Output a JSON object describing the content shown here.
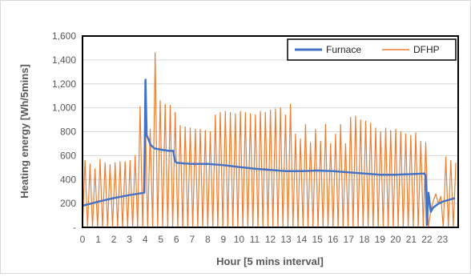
{
  "chart_data": {
    "type": "line",
    "title": "",
    "xlabel": "Hour [5 mins interval]",
    "ylabel": "Heating energy [Wh/5mins]",
    "xlim": [
      0,
      24
    ],
    "ylim": [
      0,
      1600
    ],
    "x_ticks": [
      0,
      1,
      2,
      3,
      4,
      5,
      6,
      7,
      8,
      9,
      10,
      11,
      12,
      13,
      14,
      15,
      16,
      17,
      18,
      19,
      20,
      21,
      22,
      23
    ],
    "y_ticks": [
      {
        "value": 0,
        "label": "-"
      },
      {
        "value": 200,
        "label": "200"
      },
      {
        "value": 400,
        "label": "400"
      },
      {
        "value": 600,
        "label": "600"
      },
      {
        "value": 800,
        "label": "800"
      },
      {
        "value": 1000,
        "label": "1,000"
      },
      {
        "value": 1200,
        "label": "1,200"
      },
      {
        "value": 1400,
        "label": "1,400"
      },
      {
        "value": 1600,
        "label": "1,600"
      }
    ],
    "grid": true,
    "legend_position": "top-right",
    "series": [
      {
        "name": "Furnace",
        "color": "#4472c4",
        "x": [
          0,
          1,
          2,
          3,
          3.95,
          4.02,
          4.1,
          4.2,
          4.35,
          4.6,
          5,
          5.5,
          5.8,
          5.9,
          6,
          6.5,
          7,
          8,
          9,
          10,
          11,
          12,
          13,
          14,
          15,
          16,
          17,
          18,
          19,
          20,
          21,
          21.85,
          21.92,
          22.0,
          22.1,
          22.25,
          22.4,
          22.7,
          23,
          23.8
        ],
        "values": [
          180,
          215,
          245,
          270,
          290,
          1235,
          770,
          740,
          690,
          660,
          650,
          640,
          640,
          560,
          540,
          535,
          530,
          530,
          520,
          505,
          490,
          480,
          470,
          470,
          475,
          470,
          460,
          450,
          440,
          440,
          445,
          450,
          430,
          20,
          290,
          130,
          165,
          195,
          215,
          245
        ]
      },
      {
        "name": "DFHP",
        "color": "#ed7d31",
        "values": [
          0,
          560,
          0,
          530,
          0,
          490,
          0,
          570,
          0,
          540,
          0,
          525,
          0,
          540,
          0,
          550,
          0,
          550,
          0,
          560,
          0,
          600,
          0,
          1010,
          0,
          1010,
          0,
          820,
          0,
          1460,
          0,
          1060,
          0,
          1030,
          0,
          1020,
          0,
          960,
          0,
          850,
          0,
          840,
          0,
          830,
          0,
          820,
          0,
          820,
          0,
          810,
          0,
          800,
          0,
          940,
          0,
          960,
          0,
          970,
          0,
          960,
          0,
          950,
          0,
          970,
          0,
          960,
          0,
          950,
          0,
          940,
          0,
          970,
          0,
          960,
          0,
          980,
          0,
          990,
          0,
          1000,
          0,
          940,
          0,
          1030,
          0,
          780,
          0,
          740,
          0,
          860,
          0,
          710,
          0,
          820,
          0,
          720,
          0,
          860,
          0,
          700,
          0,
          780,
          0,
          860,
          0,
          700,
          0,
          920,
          0,
          930,
          0,
          900,
          0,
          890,
          0,
          870,
          0,
          830,
          0,
          800,
          0,
          830,
          0,
          810,
          0,
          820,
          0,
          800,
          0,
          780,
          0,
          770,
          0,
          790,
          0,
          720,
          0,
          710,
          0,
          140,
          220,
          280,
          200,
          260,
          0,
          590,
          0,
          560,
          0,
          540
        ]
      }
    ]
  }
}
